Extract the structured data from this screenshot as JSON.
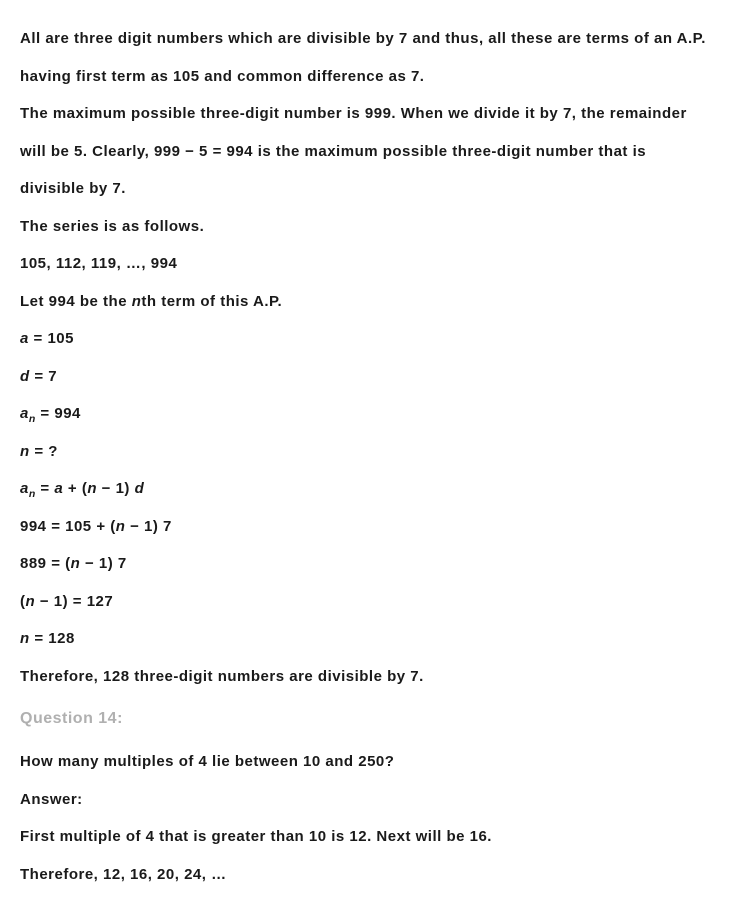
{
  "lines": {
    "l1": "All are three digit numbers which are divisible by 7 and thus, all these are terms of an A.P. having first term as 105 and common difference as 7.",
    "l2": "The maximum possible three-digit number is 999. When we divide it by 7, the remainder will be 5. Clearly, 999 − 5 = 994 is the maximum possible three-digit number that is divisible by 7.",
    "l3": "The series is as follows.",
    "l4": "105, 112, 119, …, 994",
    "l5_pre": "Let 994 be the ",
    "l5_n": "n",
    "l5_post": "th term of this A.P.",
    "l6_a": "a",
    "l6_rest": " = 105",
    "l7_d": "d",
    "l7_rest": " = 7",
    "l8_a": "a",
    "l8_sub": "n",
    "l8_rest": " = 994",
    "l9_n": "n",
    "l9_rest": " = ?",
    "l10_a": "a",
    "l10_sub": "n",
    "l10_mid": " = ",
    "l10_a2": "a",
    "l10_plus": " + (",
    "l10_n": "n",
    "l10_minus": " − 1) ",
    "l10_d": "d",
    "l11_pre": "994 = 105 + (",
    "l11_n": "n",
    "l11_post": " − 1) 7",
    "l12_pre": "889 = (",
    "l12_n": "n",
    "l12_post": " − 1) 7",
    "l13_pre": "(",
    "l13_n": "n",
    "l13_post": " − 1) = 127",
    "l14_n": "n",
    "l14_rest": " = 128",
    "l15": "Therefore, 128 three-digit numbers are divisible by 7.",
    "q14": "Question 14:",
    "l16": "How many multiples of 4 lie between 10 and 250?",
    "l17": "Answer:",
    "l18": "First multiple of 4 that is greater than 10 is 12. Next will be 16.",
    "l19": "Therefore, 12, 16, 20, 24, …"
  }
}
